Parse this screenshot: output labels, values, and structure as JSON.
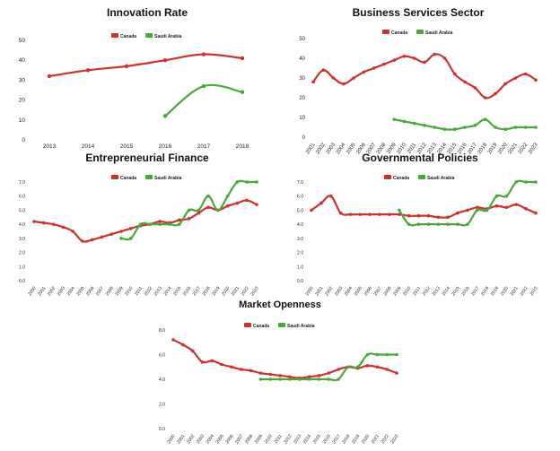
{
  "colors": {
    "canada": "#d0312d",
    "saudi": "#4aa83a"
  },
  "chart_data": [
    {
      "type": "line",
      "title": "Innovation Rate",
      "x": [
        "2013",
        "2014",
        "2015",
        "2016",
        "2017",
        "2018"
      ],
      "ylim": [
        0,
        50
      ],
      "yticks": [
        0,
        10,
        20,
        30,
        40,
        50
      ],
      "ytick_labels": [
        "0",
        "10",
        "20",
        "30",
        "40",
        "50"
      ],
      "grid": false,
      "legend": "top-center",
      "smooth": true,
      "series": [
        {
          "name": "Canada",
          "values": [
            32,
            35,
            37,
            40,
            43,
            41
          ]
        },
        {
          "name": "Saudi Arabia",
          "values": [
            null,
            null,
            null,
            12,
            27,
            24
          ]
        }
      ]
    },
    {
      "type": "line",
      "title": "Business Services Sector",
      "x": [
        "2001",
        "2002",
        "2003",
        "2004",
        "2005",
        "2006",
        "2007",
        "2008",
        "2009",
        "2010",
        "2011",
        "2012",
        "2013",
        "2014",
        "2015",
        "2016",
        "2017",
        "2018",
        "2019",
        "2020",
        "2021",
        "2022",
        "2023"
      ],
      "ylim": [
        0,
        50
      ],
      "yticks": [
        0,
        10,
        20,
        30,
        40,
        50
      ],
      "ytick_labels": [
        "0",
        "10",
        "20",
        "30",
        "40",
        "50"
      ],
      "grid": false,
      "legend": "top-center",
      "smooth": true,
      "series": [
        {
          "name": "Canada",
          "values": [
            28,
            34,
            30,
            27,
            30,
            33,
            35,
            37,
            39,
            41,
            40,
            38,
            42,
            40,
            32,
            28,
            25,
            20,
            22,
            27,
            30,
            32,
            29
          ]
        },
        {
          "name": "Saudi Arabia",
          "values": [
            null,
            null,
            null,
            null,
            null,
            null,
            null,
            null,
            9,
            8,
            7,
            6,
            5,
            4,
            4,
            5,
            6,
            9,
            5,
            4,
            5,
            5,
            5
          ]
        }
      ]
    },
    {
      "type": "line",
      "title": "Entrepreneurial Finance",
      "x": [
        "2000",
        "2001",
        "2002",
        "2003",
        "2004",
        "2005",
        "2006",
        "2007",
        "2008",
        "2009",
        "2010",
        "2011",
        "2012",
        "2013",
        "2014",
        "2015",
        "2016",
        "2017",
        "2018",
        "2019",
        "2020",
        "2021",
        "2022",
        "2023"
      ],
      "ylim": [
        0,
        7
      ],
      "yticks": [
        0,
        1,
        2,
        3,
        4,
        5,
        6,
        7
      ],
      "ytick_labels": [
        "0.0",
        "1.0",
        "2.0",
        "3.0",
        "4.0",
        "5.0",
        "6.0",
        "7.0"
      ],
      "grid": false,
      "legend": "top-center",
      "smooth": true,
      "series": [
        {
          "name": "Canada",
          "values": [
            4.2,
            4.1,
            4.0,
            3.8,
            3.5,
            2.8,
            2.9,
            3.1,
            3.3,
            3.5,
            3.7,
            3.9,
            4.0,
            4.2,
            4.1,
            4.3,
            4.4,
            4.8,
            5.2,
            5.0,
            5.3,
            5.5,
            5.7,
            5.4
          ]
        },
        {
          "name": "Saudi Arabia",
          "values": [
            null,
            null,
            null,
            null,
            null,
            null,
            null,
            null,
            null,
            3.0,
            3.0,
            4.0,
            4.0,
            4.0,
            4.0,
            4.0,
            5.0,
            5.0,
            6.0,
            5.0,
            6.0,
            7.0,
            7.0,
            7.0
          ]
        }
      ]
    },
    {
      "type": "line",
      "title": "Governmental Policies",
      "x": [
        "2000",
        "2001",
        "2002",
        "2003",
        "2004",
        "2005",
        "2006",
        "2007",
        "2008",
        "2009",
        "2010",
        "2011",
        "2012",
        "2013",
        "2014",
        "2015",
        "2016",
        "2017",
        "2018",
        "2019",
        "2020",
        "2021",
        "2022",
        "2023"
      ],
      "ylim": [
        0,
        7
      ],
      "yticks": [
        0,
        1,
        2,
        3,
        4,
        5,
        6,
        7
      ],
      "ytick_labels": [
        "0.0",
        "1.0",
        "2.0",
        "3.0",
        "4.0",
        "5.0",
        "6.0",
        "7.0"
      ],
      "grid": false,
      "legend": "top-center",
      "smooth": true,
      "series": [
        {
          "name": "Canada",
          "values": [
            5.0,
            5.5,
            6.0,
            4.8,
            4.7,
            4.7,
            4.7,
            4.7,
            4.7,
            4.7,
            4.6,
            4.6,
            4.6,
            4.5,
            4.5,
            4.8,
            5.0,
            5.2,
            5.1,
            5.3,
            5.2,
            5.4,
            5.1,
            4.8
          ]
        },
        {
          "name": "Saudi Arabia",
          "values": [
            null,
            null,
            null,
            null,
            null,
            null,
            null,
            null,
            null,
            5.0,
            4.0,
            4.0,
            4.0,
            4.0,
            4.0,
            4.0,
            4.0,
            5.0,
            5.0,
            6.0,
            6.0,
            7.0,
            7.0,
            7.0
          ]
        }
      ]
    },
    {
      "type": "line",
      "title": "Market Openness",
      "x": [
        "2000",
        "2001",
        "2002",
        "2003",
        "2004",
        "2005",
        "2006",
        "2007",
        "2008",
        "2009",
        "2010",
        "2011",
        "2012",
        "2013",
        "2014",
        "2015",
        "2016",
        "2017",
        "2018",
        "2019",
        "2020",
        "2021",
        "2022",
        "2023"
      ],
      "ylim": [
        0,
        8
      ],
      "yticks": [
        0,
        2,
        4,
        6,
        8
      ],
      "ytick_labels": [
        "0.0",
        "2.0",
        "4.0",
        "6.0",
        "8.0"
      ],
      "grid": false,
      "legend": "top-center",
      "smooth": true,
      "series": [
        {
          "name": "Canada",
          "values": [
            7.2,
            6.8,
            6.3,
            5.4,
            5.5,
            5.2,
            5.0,
            4.8,
            4.7,
            4.5,
            4.4,
            4.3,
            4.2,
            4.1,
            4.2,
            4.3,
            4.5,
            4.8,
            5.0,
            4.9,
            5.1,
            5.0,
            4.8,
            4.5
          ]
        },
        {
          "name": "Saudi Arabia",
          "values": [
            null,
            null,
            null,
            null,
            null,
            null,
            null,
            null,
            null,
            4.0,
            4.0,
            4.0,
            4.0,
            4.0,
            4.0,
            4.0,
            4.0,
            4.0,
            5.0,
            5.0,
            6.0,
            6.0,
            6.0,
            6.0
          ]
        }
      ]
    }
  ]
}
